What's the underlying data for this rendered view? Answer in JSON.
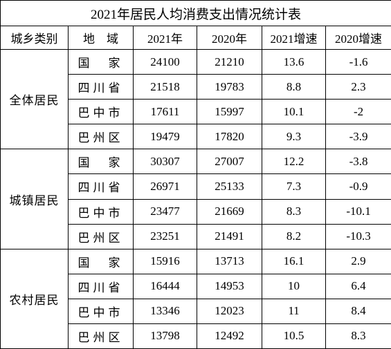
{
  "title": "2021年居民人均消费支出情况统计表",
  "table": {
    "header": [
      "城乡类别",
      "地　域",
      "2021年",
      "2020年",
      "2021增速",
      "2020增速"
    ],
    "groups": [
      {
        "label": "全体居民",
        "rows": [
          [
            "国　家",
            24100,
            21210,
            13.6,
            -1.6
          ],
          [
            "四川省",
            21518,
            19783,
            8.8,
            2.3
          ],
          [
            "巴中市",
            17611,
            15997,
            10.1,
            -2
          ],
          [
            "巴州区",
            19479,
            17820,
            9.3,
            -3.9
          ]
        ]
      },
      {
        "label": "城镇居民",
        "rows": [
          [
            "国　家",
            30307,
            27007,
            12.2,
            -3.8
          ],
          [
            "四川省",
            26971,
            25133,
            7.3,
            -0.9
          ],
          [
            "巴中市",
            23477,
            21669,
            8.3,
            -10.1
          ],
          [
            "巴州区",
            23251,
            21491,
            8.2,
            -10.3
          ]
        ]
      },
      {
        "label": "农村居民",
        "rows": [
          [
            "国　家",
            15916,
            13713,
            16.1,
            2.9
          ],
          [
            "四川省",
            16444,
            14953,
            10,
            6.4
          ],
          [
            "巴中市",
            13346,
            12023,
            11,
            8.4
          ],
          [
            "巴州区",
            13798,
            12492,
            10.5,
            8.3
          ]
        ]
      }
    ]
  }
}
